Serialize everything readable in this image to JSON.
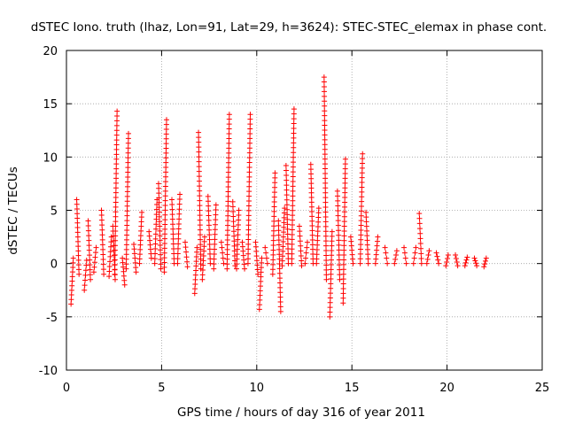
{
  "chart_data": {
    "type": "scatter",
    "title": "dSTEC Iono. truth (lhaz, Lon=91, Lat=29, h=3624): STEC-STEC_elemax in phase cont.",
    "xlabel": "GPS time / hours of day 316 of year 2011",
    "ylabel": "dSTEC  / TECUs",
    "xlim": [
      0,
      25
    ],
    "ylim": [
      -10,
      20
    ],
    "xticks": [
      0,
      5,
      10,
      15,
      20,
      25
    ],
    "xtick_labels": [
      "0",
      "5",
      "10",
      "15",
      "20",
      "25"
    ],
    "yticks": [
      -10,
      -5,
      0,
      5,
      10,
      15,
      20
    ],
    "ytick_labels": [
      "-10",
      "-5",
      "0",
      "5",
      "10",
      "15",
      "20"
    ],
    "grid": true,
    "marker": "+",
    "color": "#ff0000",
    "arcs": [
      {
        "t": 0.3,
        "lo": -3.8,
        "hi": 0.5
      },
      {
        "t": 0.6,
        "lo": -1.0,
        "hi": 6.0
      },
      {
        "t": 1.0,
        "lo": -2.5,
        "hi": 0.3
      },
      {
        "t": 1.2,
        "lo": -1.5,
        "hi": 4.0
      },
      {
        "t": 1.5,
        "lo": -0.8,
        "hi": 1.5
      },
      {
        "t": 1.9,
        "lo": -1.0,
        "hi": 5.0
      },
      {
        "t": 2.3,
        "lo": -1.2,
        "hi": 2.5
      },
      {
        "t": 2.5,
        "lo": -1.5,
        "hi": 3.5
      },
      {
        "t": 2.6,
        "lo": -1.0,
        "hi": 14.3
      },
      {
        "t": 3.0,
        "lo": -2.0,
        "hi": 0.5
      },
      {
        "t": 3.2,
        "lo": -0.5,
        "hi": 12.2
      },
      {
        "t": 3.6,
        "lo": -0.8,
        "hi": 1.8
      },
      {
        "t": 3.9,
        "lo": 0.0,
        "hi": 4.8
      },
      {
        "t": 4.4,
        "lo": 0.5,
        "hi": 3.0
      },
      {
        "t": 4.7,
        "lo": 0.0,
        "hi": 6.0
      },
      {
        "t": 4.9,
        "lo": -0.5,
        "hi": 7.5
      },
      {
        "t": 5.2,
        "lo": -0.8,
        "hi": 13.5
      },
      {
        "t": 5.6,
        "lo": 0.0,
        "hi": 6.0
      },
      {
        "t": 5.9,
        "lo": 0.0,
        "hi": 6.5
      },
      {
        "t": 6.3,
        "lo": -0.3,
        "hi": 2.0
      },
      {
        "t": 6.8,
        "lo": -2.8,
        "hi": 1.5
      },
      {
        "t": 7.0,
        "lo": -0.5,
        "hi": 12.3
      },
      {
        "t": 7.2,
        "lo": -1.5,
        "hi": 2.5
      },
      {
        "t": 7.5,
        "lo": 0.0,
        "hi": 6.3
      },
      {
        "t": 7.8,
        "lo": -0.5,
        "hi": 5.5
      },
      {
        "t": 8.2,
        "lo": 0.0,
        "hi": 2.0
      },
      {
        "t": 8.5,
        "lo": -0.5,
        "hi": 14.0
      },
      {
        "t": 8.8,
        "lo": -0.2,
        "hi": 5.8
      },
      {
        "t": 9.0,
        "lo": -0.5,
        "hi": 5.0
      },
      {
        "t": 9.3,
        "lo": -0.5,
        "hi": 2.0
      },
      {
        "t": 9.6,
        "lo": 0.0,
        "hi": 14.0
      },
      {
        "t": 10.0,
        "lo": -1.0,
        "hi": 2.0
      },
      {
        "t": 10.2,
        "lo": -4.3,
        "hi": 0.5
      },
      {
        "t": 10.5,
        "lo": 0.0,
        "hi": 1.5
      },
      {
        "t": 10.9,
        "lo": -1.0,
        "hi": 8.5
      },
      {
        "t": 11.2,
        "lo": -4.5,
        "hi": 4.0
      },
      {
        "t": 11.4,
        "lo": -0.2,
        "hi": 5.2
      },
      {
        "t": 11.6,
        "lo": 0.0,
        "hi": 9.2
      },
      {
        "t": 11.9,
        "lo": 0.0,
        "hi": 14.5
      },
      {
        "t": 12.3,
        "lo": -0.2,
        "hi": 3.5
      },
      {
        "t": 12.6,
        "lo": 0.0,
        "hi": 2.0
      },
      {
        "t": 12.9,
        "lo": 0.0,
        "hi": 9.3
      },
      {
        "t": 13.2,
        "lo": 0.0,
        "hi": 5.2
      },
      {
        "t": 13.6,
        "lo": -1.5,
        "hi": 17.5
      },
      {
        "t": 13.9,
        "lo": -5.0,
        "hi": 3.0
      },
      {
        "t": 14.3,
        "lo": -1.5,
        "hi": 6.8
      },
      {
        "t": 14.6,
        "lo": -3.7,
        "hi": 9.8
      },
      {
        "t": 15.0,
        "lo": 0.0,
        "hi": 2.5
      },
      {
        "t": 15.5,
        "lo": 0.0,
        "hi": 10.3
      },
      {
        "t": 15.8,
        "lo": 0.0,
        "hi": 4.8
      },
      {
        "t": 16.3,
        "lo": 0.0,
        "hi": 2.5
      },
      {
        "t": 16.8,
        "lo": 0.0,
        "hi": 1.5
      },
      {
        "t": 17.3,
        "lo": 0.0,
        "hi": 1.2
      },
      {
        "t": 17.8,
        "lo": 0.0,
        "hi": 1.5
      },
      {
        "t": 18.3,
        "lo": 0.0,
        "hi": 1.5
      },
      {
        "t": 18.6,
        "lo": 0.0,
        "hi": 4.7
      },
      {
        "t": 19.0,
        "lo": 0.0,
        "hi": 1.2
      },
      {
        "t": 19.5,
        "lo": 0.0,
        "hi": 1.0
      },
      {
        "t": 20.0,
        "lo": -0.2,
        "hi": 0.8
      },
      {
        "t": 20.5,
        "lo": -0.2,
        "hi": 0.8
      },
      {
        "t": 21.0,
        "lo": -0.2,
        "hi": 0.6
      },
      {
        "t": 21.5,
        "lo": -0.2,
        "hi": 0.5
      },
      {
        "t": 22.0,
        "lo": -0.3,
        "hi": 0.5
      }
    ]
  }
}
